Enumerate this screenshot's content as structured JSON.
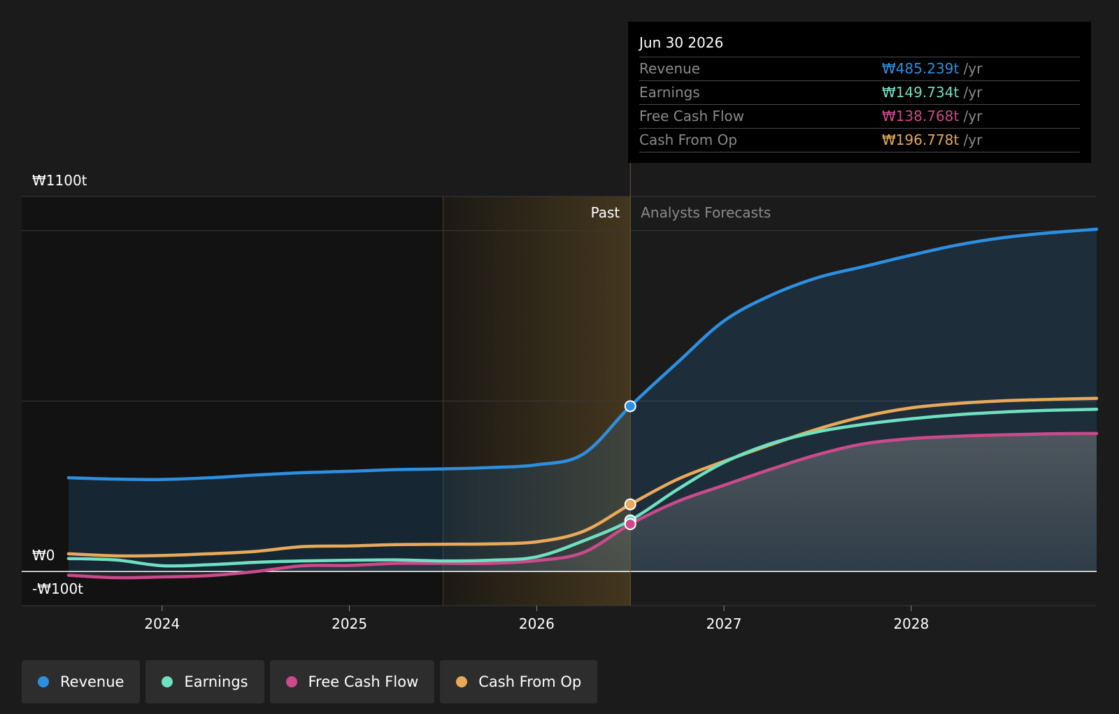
{
  "chart_data": {
    "type": "area",
    "y_axis": {
      "top_label": "₩1100t",
      "zero_label": "₩0",
      "bottom_label": "-₩100t",
      "ylim": [
        -100,
        1100
      ],
      "unit": "t"
    },
    "x_ticks": [
      "2024",
      "2025",
      "2026",
      "2027",
      "2028"
    ],
    "x_tick_years": [
      2024,
      2025,
      2026,
      2027,
      2028
    ],
    "xlim": [
      2023.25,
      2028.99
    ],
    "divider_x": 2026.5,
    "highlight_start_x": 2025.5,
    "past_label": "Past",
    "forecast_label": "Analysts Forecasts",
    "series": [
      {
        "name": "Revenue",
        "color": "#2d8fe0",
        "fill": "rgba(45,143,224,0.16)",
        "points": [
          [
            2023.5,
            275
          ],
          [
            2023.75,
            271
          ],
          [
            2024.0,
            270
          ],
          [
            2024.25,
            275
          ],
          [
            2024.5,
            283
          ],
          [
            2024.75,
            290
          ],
          [
            2025.0,
            294
          ],
          [
            2025.25,
            299
          ],
          [
            2025.5,
            301
          ],
          [
            2025.75,
            305
          ],
          [
            2026.0,
            313
          ],
          [
            2026.25,
            345
          ],
          [
            2026.5,
            485
          ],
          [
            2026.75,
            612
          ],
          [
            2027.0,
            735
          ],
          [
            2027.25,
            810
          ],
          [
            2027.5,
            862
          ],
          [
            2027.75,
            895
          ],
          [
            2028.0,
            928
          ],
          [
            2028.25,
            958
          ],
          [
            2028.5,
            980
          ],
          [
            2028.75,
            994
          ],
          [
            2028.99,
            1004
          ]
        ]
      },
      {
        "name": "Earnings",
        "color": "#6fe0c0",
        "points": [
          [
            2023.5,
            38
          ],
          [
            2023.75,
            34
          ],
          [
            2024.0,
            17
          ],
          [
            2024.25,
            20
          ],
          [
            2024.5,
            27
          ],
          [
            2024.75,
            31
          ],
          [
            2025.0,
            33
          ],
          [
            2025.25,
            34
          ],
          [
            2025.5,
            31
          ],
          [
            2025.75,
            33
          ],
          [
            2026.0,
            43
          ],
          [
            2026.25,
            90
          ],
          [
            2026.5,
            150
          ],
          [
            2026.75,
            240
          ],
          [
            2027.0,
            320
          ],
          [
            2027.25,
            375
          ],
          [
            2027.5,
            410
          ],
          [
            2027.75,
            432
          ],
          [
            2028.0,
            448
          ],
          [
            2028.25,
            460
          ],
          [
            2028.5,
            468
          ],
          [
            2028.75,
            473
          ],
          [
            2028.99,
            476
          ]
        ]
      },
      {
        "name": "Free Cash Flow",
        "color": "#cc4a8c",
        "points": [
          [
            2023.5,
            -11
          ],
          [
            2023.75,
            -18
          ],
          [
            2024.0,
            -16
          ],
          [
            2024.25,
            -12
          ],
          [
            2024.5,
            0
          ],
          [
            2024.75,
            17
          ],
          [
            2025.0,
            18
          ],
          [
            2025.25,
            24
          ],
          [
            2025.5,
            24
          ],
          [
            2025.75,
            24
          ],
          [
            2026.0,
            32
          ],
          [
            2026.25,
            56
          ],
          [
            2026.5,
            139
          ],
          [
            2026.75,
            205
          ],
          [
            2027.0,
            253
          ],
          [
            2027.25,
            300
          ],
          [
            2027.5,
            343
          ],
          [
            2027.75,
            375
          ],
          [
            2028.0,
            390
          ],
          [
            2028.25,
            397
          ],
          [
            2028.5,
            401
          ],
          [
            2028.75,
            404
          ],
          [
            2028.99,
            405
          ]
        ]
      },
      {
        "name": "Cash From Op",
        "color": "#e8a95a",
        "points": [
          [
            2023.5,
            52
          ],
          [
            2023.75,
            46
          ],
          [
            2024.0,
            47
          ],
          [
            2024.25,
            52
          ],
          [
            2024.5,
            59
          ],
          [
            2024.75,
            73
          ],
          [
            2025.0,
            75
          ],
          [
            2025.25,
            79
          ],
          [
            2025.5,
            80
          ],
          [
            2025.75,
            81
          ],
          [
            2026.0,
            87
          ],
          [
            2026.25,
            118
          ],
          [
            2026.5,
            197
          ],
          [
            2026.75,
            270
          ],
          [
            2027.0,
            323
          ],
          [
            2027.25,
            372
          ],
          [
            2027.5,
            418
          ],
          [
            2027.75,
            455
          ],
          [
            2028.0,
            480
          ],
          [
            2028.25,
            493
          ],
          [
            2028.5,
            501
          ],
          [
            2028.75,
            505
          ],
          [
            2028.99,
            508
          ]
        ]
      }
    ],
    "markers_at": 2026.5
  },
  "tooltip": {
    "date": "Jun 30 2026",
    "rows": [
      {
        "label": "Revenue",
        "value": "₩485.239t",
        "unit": "/yr",
        "color": "#2d8fe0"
      },
      {
        "label": "Earnings",
        "value": "₩149.734t",
        "unit": "/yr",
        "color": "#6fe0c0"
      },
      {
        "label": "Free Cash Flow",
        "value": "₩138.768t",
        "unit": "/yr",
        "color": "#cc4a8c"
      },
      {
        "label": "Cash From Op",
        "value": "₩196.778t",
        "unit": "/yr",
        "color": "#e8a95a"
      }
    ]
  },
  "legend": [
    {
      "label": "Revenue",
      "color": "#2d8fe0"
    },
    {
      "label": "Earnings",
      "color": "#6fe0c0"
    },
    {
      "label": "Free Cash Flow",
      "color": "#cc4a8c"
    },
    {
      "label": "Cash From Op",
      "color": "#e8a95a"
    }
  ]
}
